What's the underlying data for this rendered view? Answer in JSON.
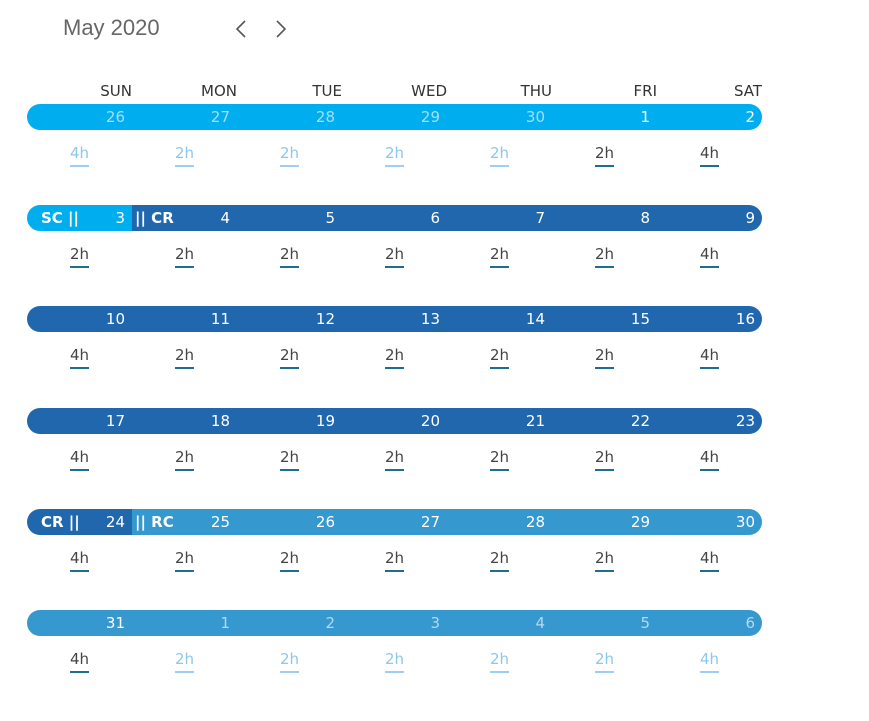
{
  "header": {
    "title": "May 2020"
  },
  "weekdays": [
    "SUN",
    "MON",
    "TUE",
    "WED",
    "THU",
    "FRI",
    "SAT"
  ],
  "weeks": [
    {
      "cells": [
        {
          "day": "26",
          "hours": "4h",
          "muted": true,
          "color": "#00aeef"
        },
        {
          "day": "27",
          "hours": "2h",
          "muted": true,
          "color": "#00aeef"
        },
        {
          "day": "28",
          "hours": "2h",
          "muted": true,
          "color": "#00aeef"
        },
        {
          "day": "29",
          "hours": "2h",
          "muted": true,
          "color": "#00aeef"
        },
        {
          "day": "30",
          "hours": "2h",
          "muted": true,
          "color": "#00aeef"
        },
        {
          "day": "1",
          "hours": "2h",
          "muted": false,
          "color": "#00aeef"
        },
        {
          "day": "2",
          "hours": "4h",
          "muted": false,
          "color": "#00aeef"
        }
      ]
    },
    {
      "cells": [
        {
          "day": "3",
          "hours": "2h",
          "muted": false,
          "color": "#00aeef",
          "tag": "SC ||"
        },
        {
          "day": "4",
          "hours": "2h",
          "muted": false,
          "color": "#2167ae",
          "tag": "|| CR"
        },
        {
          "day": "5",
          "hours": "2h",
          "muted": false,
          "color": "#2167ae"
        },
        {
          "day": "6",
          "hours": "2h",
          "muted": false,
          "color": "#2167ae"
        },
        {
          "day": "7",
          "hours": "2h",
          "muted": false,
          "color": "#2167ae"
        },
        {
          "day": "8",
          "hours": "2h",
          "muted": false,
          "color": "#2167ae"
        },
        {
          "day": "9",
          "hours": "4h",
          "muted": false,
          "color": "#2167ae"
        }
      ]
    },
    {
      "cells": [
        {
          "day": "10",
          "hours": "4h",
          "muted": false,
          "color": "#2167ae"
        },
        {
          "day": "11",
          "hours": "2h",
          "muted": false,
          "color": "#2167ae"
        },
        {
          "day": "12",
          "hours": "2h",
          "muted": false,
          "color": "#2167ae"
        },
        {
          "day": "13",
          "hours": "2h",
          "muted": false,
          "color": "#2167ae"
        },
        {
          "day": "14",
          "hours": "2h",
          "muted": false,
          "color": "#2167ae"
        },
        {
          "day": "15",
          "hours": "2h",
          "muted": false,
          "color": "#2167ae"
        },
        {
          "day": "16",
          "hours": "4h",
          "muted": false,
          "color": "#2167ae"
        }
      ]
    },
    {
      "cells": [
        {
          "day": "17",
          "hours": "4h",
          "muted": false,
          "color": "#2167ae"
        },
        {
          "day": "18",
          "hours": "2h",
          "muted": false,
          "color": "#2167ae"
        },
        {
          "day": "19",
          "hours": "2h",
          "muted": false,
          "color": "#2167ae"
        },
        {
          "day": "20",
          "hours": "2h",
          "muted": false,
          "color": "#2167ae"
        },
        {
          "day": "21",
          "hours": "2h",
          "muted": false,
          "color": "#2167ae"
        },
        {
          "day": "22",
          "hours": "2h",
          "muted": false,
          "color": "#2167ae"
        },
        {
          "day": "23",
          "hours": "4h",
          "muted": false,
          "color": "#2167ae"
        }
      ]
    },
    {
      "cells": [
        {
          "day": "24",
          "hours": "4h",
          "muted": false,
          "color": "#2167ae",
          "tag": "CR ||"
        },
        {
          "day": "25",
          "hours": "2h",
          "muted": false,
          "color": "#3598cf",
          "tag": "|| RC"
        },
        {
          "day": "26",
          "hours": "2h",
          "muted": false,
          "color": "#3598cf"
        },
        {
          "day": "27",
          "hours": "2h",
          "muted": false,
          "color": "#3598cf"
        },
        {
          "day": "28",
          "hours": "2h",
          "muted": false,
          "color": "#3598cf"
        },
        {
          "day": "29",
          "hours": "2h",
          "muted": false,
          "color": "#3598cf"
        },
        {
          "day": "30",
          "hours": "4h",
          "muted": false,
          "color": "#3598cf"
        }
      ]
    },
    {
      "cells": [
        {
          "day": "31",
          "hours": "4h",
          "muted": false,
          "color": "#3598cf"
        },
        {
          "day": "1",
          "hours": "2h",
          "muted": true,
          "color": "#3598cf"
        },
        {
          "day": "2",
          "hours": "2h",
          "muted": true,
          "color": "#3598cf"
        },
        {
          "day": "3",
          "hours": "2h",
          "muted": true,
          "color": "#3598cf"
        },
        {
          "day": "4",
          "hours": "2h",
          "muted": true,
          "color": "#3598cf"
        },
        {
          "day": "5",
          "hours": "2h",
          "muted": true,
          "color": "#3598cf"
        },
        {
          "day": "6",
          "hours": "4h",
          "muted": true,
          "color": "#3598cf"
        }
      ]
    }
  ]
}
